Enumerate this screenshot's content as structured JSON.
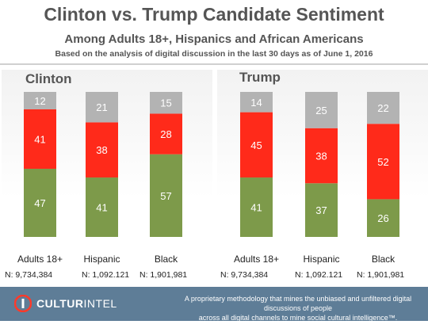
{
  "header": {
    "title": "Clinton vs. Trump Candidate Sentiment",
    "subtitle": "Among Adults 18+, Hispanics and African Americans",
    "note": "Based on the analysis of digital discussion in the last 30 days as of June 1, 2016"
  },
  "colors": {
    "positive": "#7d9a4a",
    "negative": "#ff2a1a",
    "neutral": "#b3b3b3"
  },
  "chart_data": [
    {
      "type": "bar",
      "stacked": true,
      "title": "Clinton",
      "categories": [
        "Adults 18+",
        "Hispanic",
        "Black"
      ],
      "sample_sizes": [
        "N:  9,734,384",
        "N: 1,092.121",
        "N: 1,901,981"
      ],
      "series": [
        {
          "values": [
            47,
            41,
            57
          ],
          "color": "#7d9a4a"
        },
        {
          "values": [
            41,
            38,
            28
          ],
          "color": "#ff2a1a"
        },
        {
          "values": [
            12,
            21,
            15
          ],
          "color": "#b3b3b3"
        }
      ],
      "ylim": [
        0,
        100
      ]
    },
    {
      "type": "bar",
      "stacked": true,
      "title": "Trump",
      "categories": [
        "Adults 18+",
        "Hispanic",
        "Black"
      ],
      "sample_sizes": [
        "N:  9,734,384",
        "N: 1,092.121",
        "N: 1,901,981"
      ],
      "series": [
        {
          "values": [
            41,
            37,
            26
          ],
          "color": "#7d9a4a"
        },
        {
          "values": [
            45,
            38,
            52
          ],
          "color": "#ff2a1a"
        },
        {
          "values": [
            14,
            25,
            22
          ],
          "color": "#b3b3b3"
        }
      ],
      "ylim": [
        0,
        100
      ]
    }
  ],
  "footer": {
    "logo_culture": "CULTUR",
    "logo_intel": "INTEL",
    "logo_icon": "culturintel-logo-icon",
    "tagline_1": "A proprietary methodology that mines the unbiased and unfiltered digital discussions of people",
    "tagline_2": "across all digital channels to mine social cultural intelligence™. www.culturintel.com"
  }
}
